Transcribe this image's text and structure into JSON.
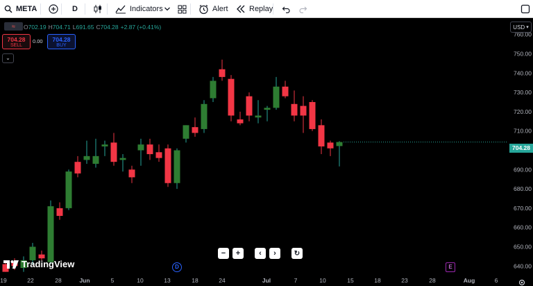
{
  "toolbar": {
    "symbol": "META",
    "interval": "D",
    "indicators_label": "Indicators",
    "alert_label": "Alert",
    "replay_label": "Replay",
    "icons": [
      "plus-circle-icon",
      "candles-icon",
      "indicators-icon",
      "chevron-down-icon",
      "layout-grid-icon",
      "alert-clock-icon",
      "replay-icon",
      "undo-icon",
      "redo-icon",
      "fullscreen-icon"
    ]
  },
  "legend": {
    "open_label": "O",
    "open": "702.19",
    "high_label": "H",
    "high": "704.71",
    "low_label": "L",
    "low": "691.65",
    "close_label": "C",
    "close": "704.28",
    "change": "+2.87 (+0.41%)"
  },
  "trade": {
    "sell_price": "704.28",
    "sell_label": "SELL",
    "spread": "0.00",
    "buy_price": "704.28",
    "buy_label": "BUY"
  },
  "currency": "USD",
  "last_price": "704.28",
  "brand": "TradingView",
  "events": {
    "dividend": "D",
    "earnings": "E"
  },
  "colors": {
    "up": "#26a69a",
    "up_candle": "#2e7d32",
    "down": "#f23645",
    "background": "#000000"
  },
  "chart_data": {
    "type": "candlestick",
    "y_ticks": [
      640,
      650,
      660,
      670,
      680,
      690,
      700,
      710,
      720,
      730,
      740,
      750,
      760
    ],
    "ylim": [
      637,
      765
    ],
    "x_ticks": [
      "19",
      "22",
      "28",
      "Jun",
      "5",
      "10",
      "13",
      "18",
      "24",
      "Jul",
      "7",
      "10",
      "15",
      "18",
      "23",
      "28",
      "Aug",
      "6"
    ],
    "candles": [
      {
        "o": 641,
        "h": 643,
        "l": 637,
        "c": 637
      },
      {
        "o": 642,
        "h": 644,
        "l": 638,
        "c": 640
      },
      {
        "o": 639,
        "h": 645,
        "l": 637,
        "c": 643
      },
      {
        "o": 643,
        "h": 652,
        "l": 641,
        "c": 650
      },
      {
        "o": 646,
        "h": 648,
        "l": 643,
        "c": 644
      },
      {
        "o": 642,
        "h": 674,
        "l": 641,
        "c": 671
      },
      {
        "o": 670,
        "h": 673,
        "l": 664,
        "c": 666
      },
      {
        "o": 670,
        "h": 690,
        "l": 669,
        "c": 689
      },
      {
        "o": 694,
        "h": 697,
        "l": 686,
        "c": 688
      },
      {
        "o": 695,
        "h": 705,
        "l": 693,
        "c": 697
      },
      {
        "o": 693,
        "h": 706,
        "l": 691,
        "c": 697
      },
      {
        "o": 702,
        "h": 705,
        "l": 697,
        "c": 703
      },
      {
        "o": 704,
        "h": 709,
        "l": 692,
        "c": 694
      },
      {
        "o": 695,
        "h": 698,
        "l": 689,
        "c": 696
      },
      {
        "o": 690,
        "h": 692,
        "l": 683,
        "c": 686
      },
      {
        "o": 700,
        "h": 706,
        "l": 692,
        "c": 703
      },
      {
        "o": 703,
        "h": 706,
        "l": 695,
        "c": 698
      },
      {
        "o": 699,
        "h": 703,
        "l": 694,
        "c": 696
      },
      {
        "o": 701,
        "h": 703,
        "l": 681,
        "c": 683
      },
      {
        "o": 683,
        "h": 701,
        "l": 680,
        "c": 700
      },
      {
        "o": 706,
        "h": 713,
        "l": 704,
        "c": 713
      },
      {
        "o": 712,
        "h": 717,
        "l": 707,
        "c": 709
      },
      {
        "o": 711,
        "h": 726,
        "l": 709,
        "c": 724
      },
      {
        "o": 727,
        "h": 738,
        "l": 725,
        "c": 736
      },
      {
        "o": 742,
        "h": 747,
        "l": 736,
        "c": 738
      },
      {
        "o": 737,
        "h": 739,
        "l": 715,
        "c": 718
      },
      {
        "o": 716,
        "h": 720,
        "l": 713,
        "c": 714
      },
      {
        "o": 728,
        "h": 730,
        "l": 715,
        "c": 718
      },
      {
        "o": 717,
        "h": 726,
        "l": 714,
        "c": 718
      },
      {
        "o": 721,
        "h": 723,
        "l": 715,
        "c": 722
      },
      {
        "o": 722,
        "h": 738,
        "l": 721,
        "c": 733
      },
      {
        "o": 733,
        "h": 736,
        "l": 727,
        "c": 728
      },
      {
        "o": 724,
        "h": 731,
        "l": 715,
        "c": 718
      },
      {
        "o": 723,
        "h": 728,
        "l": 709,
        "c": 718
      },
      {
        "o": 725,
        "h": 726,
        "l": 710,
        "c": 711
      },
      {
        "o": 713,
        "h": 716,
        "l": 698,
        "c": 702
      },
      {
        "o": 704,
        "h": 705,
        "l": 697,
        "c": 701
      },
      {
        "o": 702.19,
        "h": 704.71,
        "l": 691.65,
        "c": 704.28
      }
    ]
  }
}
